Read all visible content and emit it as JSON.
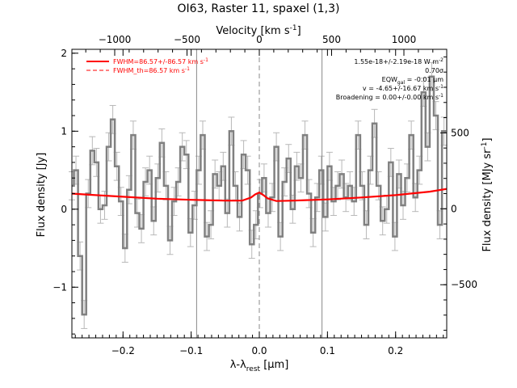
{
  "chart_data": {
    "type": "line",
    "title": "OI63, Raster 11, spaxel (1,3)",
    "xlabel": "λ-λrest [μm]",
    "xlabel_main": "λ-λ",
    "xlabel_sub": "rest",
    "xlabel_unit": " [μm]",
    "top_xlabel": "Velocity [km s⁻¹]",
    "top_xlabel_main": "Velocity [km s",
    "top_xlabel_sup": "-1",
    "top_xlabel_tail": "]",
    "ylabel": "Flux density [Jy]",
    "right_ylabel": "Flux density [MJy sr⁻¹]",
    "right_ylabel_main": "Flux density [MJy sr",
    "right_ylabel_sup": "-1",
    "right_ylabel_tail": "]",
    "xlim": [
      -0.275,
      0.275
    ],
    "ylim": [
      -1.65,
      2.05
    ],
    "top_xlim": [
      -1296,
      1296
    ],
    "right_ylim": [
      -850,
      1050
    ],
    "x_ticks": [
      -0.2,
      -0.1,
      0.0,
      0.1,
      0.2
    ],
    "x_tick_labels": [
      "−0.2",
      "−0.1",
      "0.0",
      "0.1",
      "0.2"
    ],
    "y_ticks": [
      -1,
      0,
      1,
      2
    ],
    "y_tick_labels": [
      "−1",
      "0",
      "1",
      "2"
    ],
    "top_ticks": [
      -1000,
      -500,
      0,
      500,
      1000
    ],
    "top_tick_labels": [
      "−1000",
      "−500",
      "0",
      "500",
      "1000"
    ],
    "right_ticks": [
      -500,
      0,
      500
    ],
    "right_tick_labels": [
      "−500",
      "0",
      "500"
    ],
    "vertical_lines": [
      -0.092,
      0.0,
      0.092
    ],
    "legend_position": "top-left",
    "legend": [
      {
        "label": "FWHM=86.57+/-86.57 km s",
        "sup": "-1",
        "style": "solid",
        "color": "#ff0000"
      },
      {
        "label": "FWHM_th=86.57 km s",
        "sup": "-1",
        "style": "dashed",
        "color": "#ff0000"
      }
    ],
    "annotations": [
      {
        "text": "1.55e-18+/-2.19e-18 W m",
        "sup": "-2"
      },
      {
        "text": "0.70σ",
        "sup": ""
      },
      {
        "text": "EQW",
        "sub": "gal",
        "rest": " = -0.01 μm",
        "sup": ""
      },
      {
        "text": "v = -4.65+/-16.67 km s",
        "sup": "-1"
      },
      {
        "text": "Broadening = 0.00+/-0.00 km s",
        "sup": "-1"
      }
    ],
    "series": [
      {
        "name": "data",
        "color": "#808080",
        "x": [
          -0.275,
          -0.269,
          -0.263,
          -0.257,
          -0.251,
          -0.245,
          -0.239,
          -0.233,
          -0.227,
          -0.221,
          -0.215,
          -0.209,
          -0.203,
          -0.197,
          -0.191,
          -0.185,
          -0.179,
          -0.173,
          -0.167,
          -0.161,
          -0.155,
          -0.149,
          -0.143,
          -0.137,
          -0.131,
          -0.125,
          -0.119,
          -0.113,
          -0.107,
          -0.101,
          -0.095,
          -0.089,
          -0.083,
          -0.077,
          -0.071,
          -0.065,
          -0.059,
          -0.053,
          -0.047,
          -0.041,
          -0.035,
          -0.029,
          -0.023,
          -0.017,
          -0.011,
          -0.005,
          0.001,
          0.007,
          0.013,
          0.019,
          0.025,
          0.031,
          0.037,
          0.043,
          0.049,
          0.055,
          0.061,
          0.067,
          0.073,
          0.079,
          0.085,
          0.091,
          0.097,
          0.103,
          0.109,
          0.115,
          0.121,
          0.127,
          0.133,
          0.139,
          0.145,
          0.151,
          0.157,
          0.163,
          0.169,
          0.175,
          0.181,
          0.187,
          0.193,
          0.199,
          0.205,
          0.211,
          0.217,
          0.223,
          0.229,
          0.235,
          0.241,
          0.247,
          0.253,
          0.259,
          0.265,
          0.271
        ],
        "y": [
          0.3,
          0.5,
          -0.6,
          -1.35,
          0.2,
          0.75,
          0.6,
          0.0,
          0.05,
          0.8,
          1.15,
          0.55,
          0.1,
          -0.5,
          0.25,
          0.95,
          -0.05,
          -0.25,
          0.35,
          0.5,
          -0.15,
          0.4,
          0.85,
          0.3,
          -0.4,
          0.1,
          0.35,
          0.8,
          0.7,
          -0.3,
          0.05,
          0.5,
          0.95,
          -0.35,
          -0.2,
          0.45,
          0.3,
          0.55,
          -0.05,
          1.0,
          0.3,
          -0.1,
          0.7,
          0.5,
          -0.45,
          -0.2,
          0.2,
          0.4,
          -0.05,
          0.15,
          0.8,
          -0.35,
          0.35,
          0.65,
          0.0,
          0.55,
          0.4,
          0.95,
          0.2,
          -0.3,
          0.15,
          0.5,
          -0.1,
          0.55,
          0.1,
          0.3,
          0.45,
          0.15,
          0.3,
          0.1,
          0.95,
          0.3,
          -0.2,
          0.5,
          1.1,
          0.3,
          -0.15,
          0.0,
          0.6,
          -0.35,
          0.45,
          0.05,
          0.4,
          0.95,
          0.15,
          0.5,
          1.5,
          0.8,
          1.7,
          1.2,
          -0.2,
          1.0
        ],
        "error": 0.18
      },
      {
        "name": "FWHM=86.57+/-86.57 km s-1",
        "color": "#ff0000",
        "x": [
          -0.275,
          -0.25,
          -0.2,
          -0.15,
          -0.1,
          -0.05,
          -0.025,
          -0.012,
          -0.006,
          0.0,
          0.006,
          0.012,
          0.025,
          0.05,
          0.1,
          0.15,
          0.2,
          0.25,
          0.275
        ],
        "y": [
          0.2,
          0.185,
          0.16,
          0.135,
          0.12,
          0.11,
          0.11,
          0.15,
          0.19,
          0.215,
          0.18,
          0.14,
          0.105,
          0.11,
          0.125,
          0.15,
          0.18,
          0.225,
          0.26
        ]
      }
    ]
  }
}
